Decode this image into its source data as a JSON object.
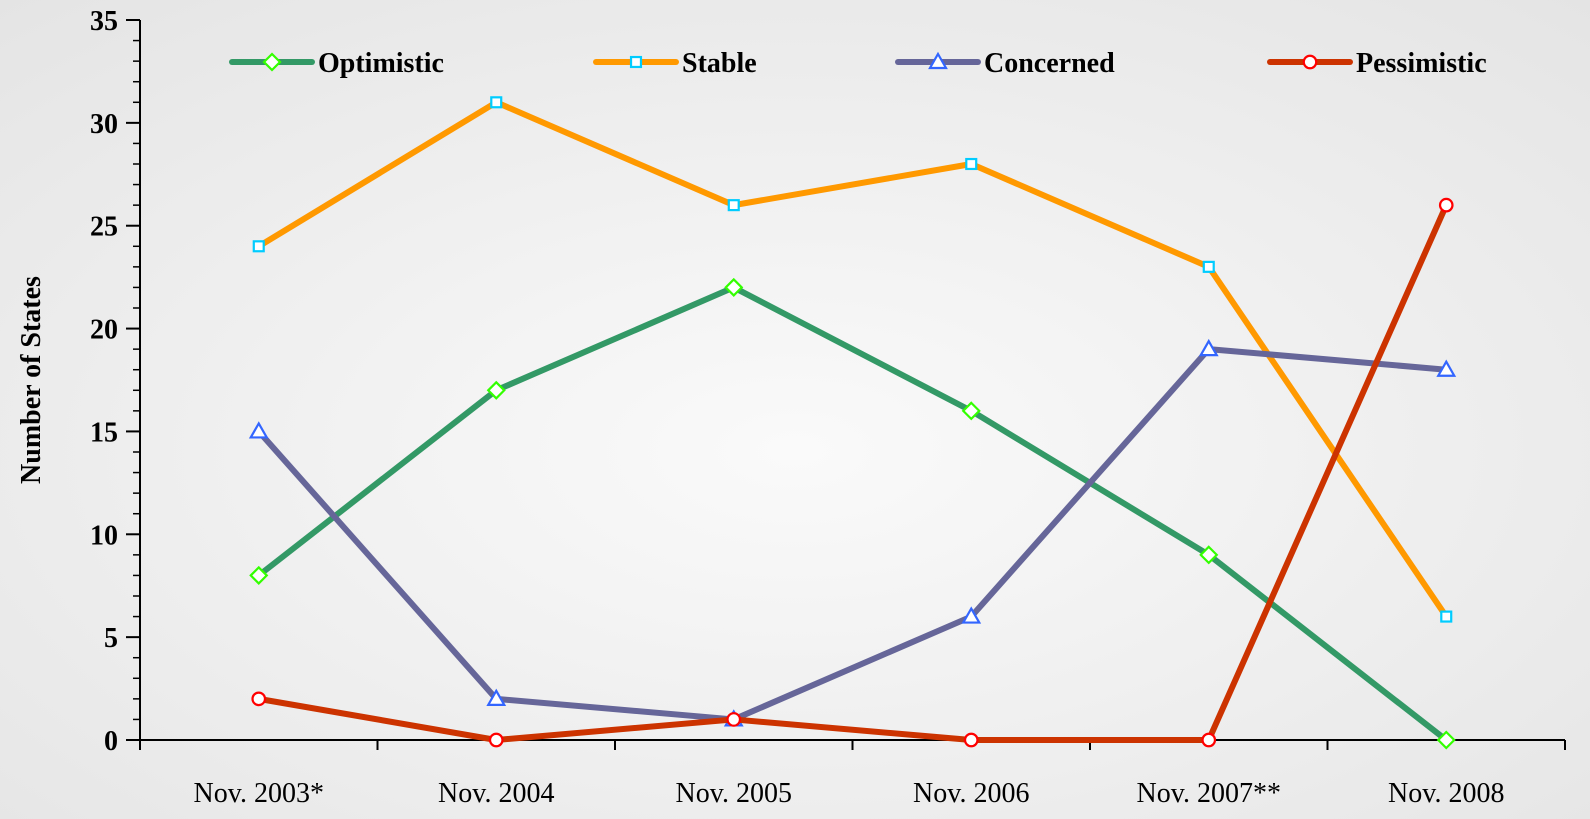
{
  "chart_data": {
    "type": "line",
    "title": "",
    "xlabel": "",
    "ylabel": "Number of States",
    "categories": [
      "Nov. 2003*",
      "Nov. 2004",
      "Nov. 2005",
      "Nov. 2006",
      "Nov. 2007**",
      "Nov. 2008"
    ],
    "ylim": [
      0,
      35
    ],
    "yticks": [
      0,
      5,
      10,
      15,
      20,
      25,
      30,
      35
    ],
    "grid": false,
    "legend_position": "top",
    "series": [
      {
        "name": "Optimistic",
        "values": [
          8,
          17,
          22,
          16,
          9,
          0
        ],
        "color": "#339966",
        "marker": "diamond",
        "marker_color": "#33ff00"
      },
      {
        "name": "Stable",
        "values": [
          24,
          31,
          26,
          28,
          23,
          6
        ],
        "color": "#ff9900",
        "marker": "square",
        "marker_color": "#00ccff"
      },
      {
        "name": "Concerned",
        "values": [
          15,
          2,
          1,
          6,
          19,
          18
        ],
        "color": "#666699",
        "marker": "triangle",
        "marker_color": "#3366ff"
      },
      {
        "name": "Pessimistic",
        "values": [
          2,
          0,
          1,
          0,
          0,
          26
        ],
        "color": "#cc3300",
        "marker": "circle",
        "marker_color": "#ff0000"
      }
    ]
  }
}
